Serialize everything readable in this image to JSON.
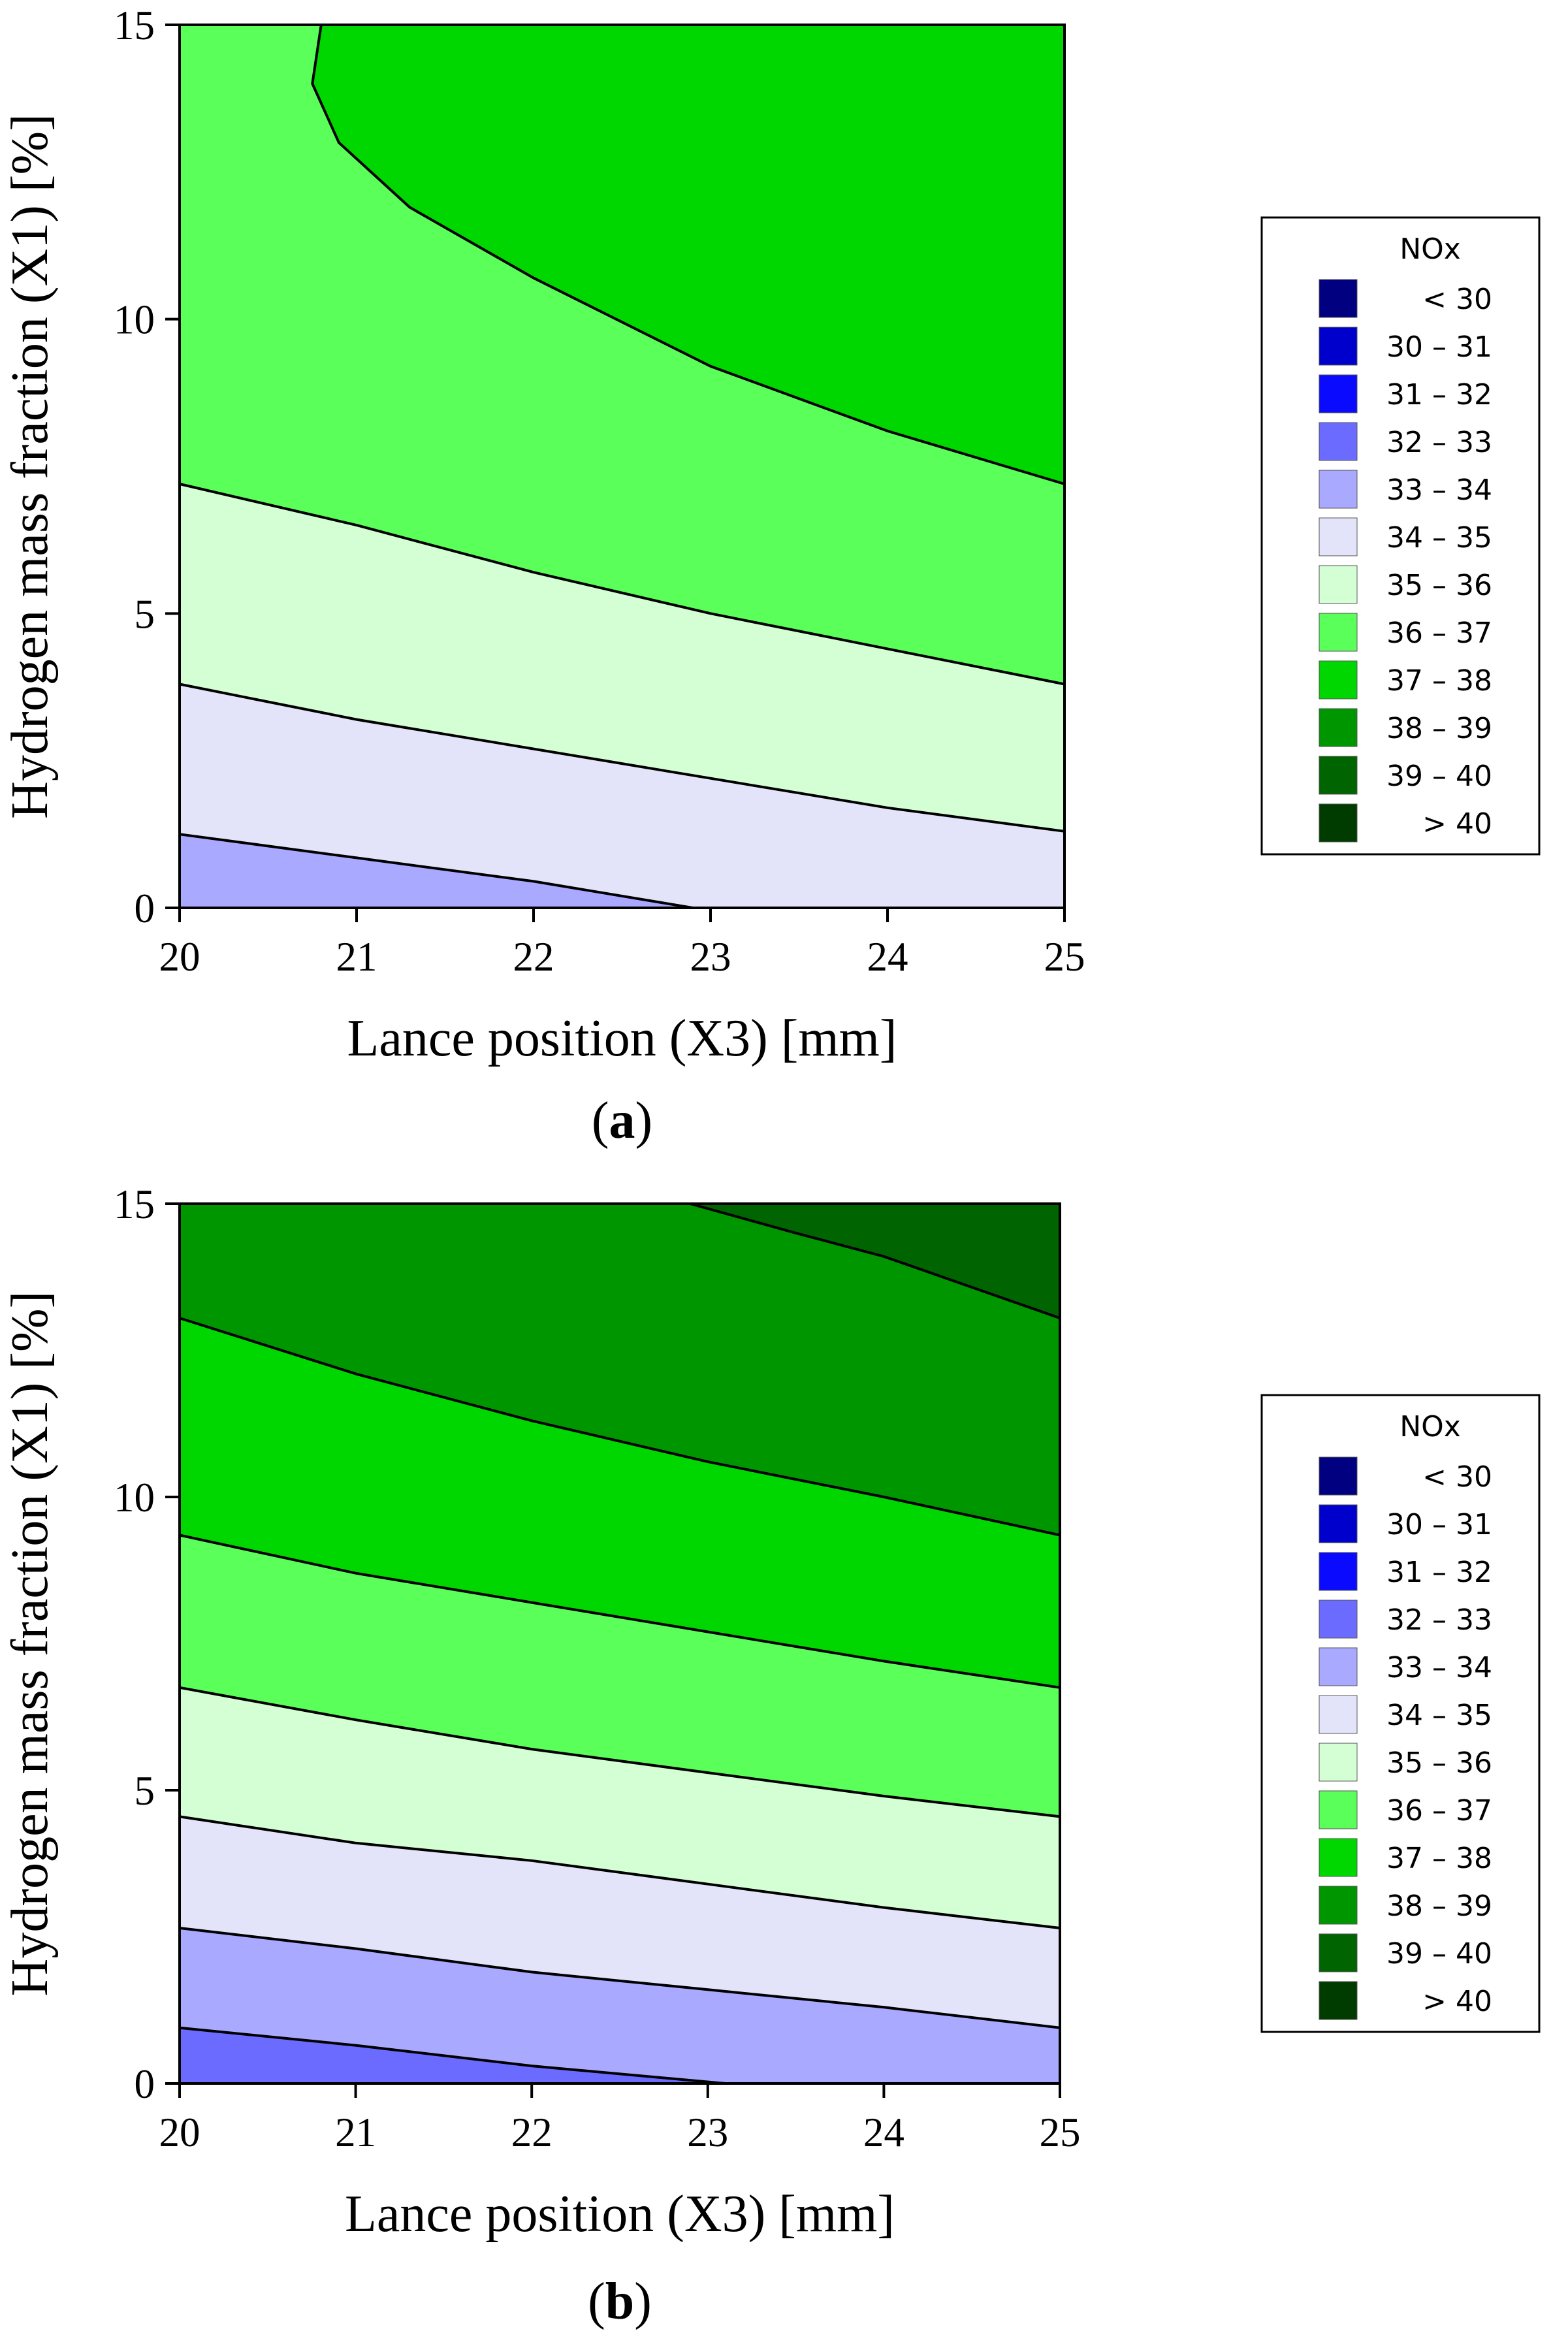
{
  "chart_data": [
    {
      "type": "contour",
      "panel_label": "a",
      "xlabel": "Lance position (X3) [mm]",
      "ylabel": "Hydrogen mass fraction (X1) [%]",
      "xlim": [
        20,
        25
      ],
      "ylim": [
        0,
        15
      ],
      "xticks": [
        "20",
        "21",
        "22",
        "23",
        "24",
        "25"
      ],
      "yticks": [
        "0",
        "5",
        "10",
        "15"
      ],
      "contours": [
        {
          "level": 34,
          "points": [
            [
              20,
              1.25
            ],
            [
              21,
              0.85
            ],
            [
              22,
              0.45
            ],
            [
              22.9,
              0.0
            ]
          ]
        },
        {
          "level": 35,
          "points": [
            [
              20,
              3.8
            ],
            [
              21,
              3.2
            ],
            [
              22,
              2.7
            ],
            [
              23,
              2.2
            ],
            [
              24,
              1.7
            ],
            [
              25,
              1.3
            ]
          ]
        },
        {
          "level": 36,
          "points": [
            [
              20,
              7.2
            ],
            [
              21,
              6.5
            ],
            [
              22,
              5.7
            ],
            [
              23,
              5.0
            ],
            [
              24,
              4.4
            ],
            [
              25,
              3.8
            ]
          ]
        },
        {
          "level": 37,
          "points": [
            [
              20.8,
              15.0
            ],
            [
              20.75,
              14.0
            ],
            [
              20.9,
              13.0
            ],
            [
              21.3,
              11.9
            ],
            [
              22,
              10.7
            ],
            [
              23,
              9.2
            ],
            [
              24,
              8.1
            ],
            [
              25,
              7.2
            ]
          ]
        }
      ],
      "regions": [
        {
          "range": "33 - 34",
          "location": "bottom-left corner"
        },
        {
          "range": "34 - 35",
          "location": "lower band"
        },
        {
          "range": "35 - 36",
          "location": "middle band"
        },
        {
          "range": "36 - 37",
          "location": "upper-left region"
        },
        {
          "range": "37 - 38",
          "location": "top-right region"
        }
      ],
      "legend": {
        "title": "NOx",
        "items": [
          {
            "label": "< 30",
            "color": "#000080"
          },
          {
            "label": "30 – 31",
            "color": "#0000cc"
          },
          {
            "label": "31 – 32",
            "color": "#0a0aff"
          },
          {
            "label": "32 – 33",
            "color": "#6b6bff"
          },
          {
            "label": "33 – 34",
            "color": "#a9a9ff"
          },
          {
            "label": "34 – 35",
            "color": "#e3e3fa"
          },
          {
            "label": "35 – 36",
            "color": "#d4ffd4"
          },
          {
            "label": "36 – 37",
            "color": "#5aff5a"
          },
          {
            "label": "37 – 38",
            "color": "#00d600"
          },
          {
            "label": "38 – 39",
            "color": "#009600"
          },
          {
            "label": "39 – 40",
            "color": "#006400"
          },
          {
            "label": "> 40",
            "color": "#003c00"
          }
        ]
      }
    },
    {
      "type": "contour",
      "panel_label": "b",
      "xlabel": "Lance position (X3) [mm]",
      "ylabel": "Hydrogen mass fraction (X1) [%]",
      "xlim": [
        20,
        25
      ],
      "ylim": [
        0,
        15
      ],
      "xticks": [
        "20",
        "21",
        "22",
        "23",
        "24",
        "25"
      ],
      "yticks": [
        "0",
        "5",
        "10",
        "15"
      ],
      "contours": [
        {
          "level": 33,
          "points": [
            [
              20,
              0.95
            ],
            [
              21,
              0.65
            ],
            [
              22,
              0.3
            ],
            [
              23.1,
              0.0
            ]
          ]
        },
        {
          "level": 34,
          "points": [
            [
              20,
              2.65
            ],
            [
              21,
              2.3
            ],
            [
              22,
              1.9
            ],
            [
              23,
              1.6
            ],
            [
              24,
              1.3
            ],
            [
              25,
              0.95
            ]
          ]
        },
        {
          "level": 35,
          "points": [
            [
              20,
              4.55
            ],
            [
              21,
              4.1
            ],
            [
              22,
              3.8
            ],
            [
              23,
              3.4
            ],
            [
              24,
              3.0
            ],
            [
              25,
              2.65
            ]
          ]
        },
        {
          "level": 36,
          "points": [
            [
              20,
              6.75
            ],
            [
              21,
              6.2
            ],
            [
              22,
              5.7
            ],
            [
              23,
              5.3
            ],
            [
              24,
              4.9
            ],
            [
              25,
              4.55
            ]
          ]
        },
        {
          "level": 37,
          "points": [
            [
              20,
              9.35
            ],
            [
              21,
              8.7
            ],
            [
              22,
              8.2
            ],
            [
              23,
              7.7
            ],
            [
              24,
              7.2
            ],
            [
              25,
              6.75
            ]
          ]
        },
        {
          "level": 38,
          "points": [
            [
              20,
              13.05
            ],
            [
              21,
              12.1
            ],
            [
              22,
              11.3
            ],
            [
              23,
              10.6
            ],
            [
              24,
              10.0
            ],
            [
              25,
              9.35
            ]
          ]
        },
        {
          "level": 39,
          "points": [
            [
              22.9,
              15.0
            ],
            [
              23.5,
              14.5
            ],
            [
              24,
              14.1
            ],
            [
              25,
              13.05
            ]
          ]
        }
      ],
      "regions": [
        {
          "range": "32 - 33",
          "location": "bottom-left corner"
        },
        {
          "range": "33 - 34",
          "location": "lowest band"
        },
        {
          "range": "34 - 35",
          "location": "lower band"
        },
        {
          "range": "35 - 36",
          "location": "middle band"
        },
        {
          "range": "36 - 37",
          "location": "middle band"
        },
        {
          "range": "37 - 38",
          "location": "upper band"
        },
        {
          "range": "38 - 39",
          "location": "top band"
        },
        {
          "range": "39 - 40",
          "location": "top-right corner"
        }
      ],
      "legend": {
        "title": "NOx",
        "items": [
          {
            "label": "< 30",
            "color": "#000080"
          },
          {
            "label": "30 – 31",
            "color": "#0000cc"
          },
          {
            "label": "31 – 32",
            "color": "#0a0aff"
          },
          {
            "label": "32 – 33",
            "color": "#6b6bff"
          },
          {
            "label": "33 – 34",
            "color": "#a9a9ff"
          },
          {
            "label": "34 – 35",
            "color": "#e3e3fa"
          },
          {
            "label": "35 – 36",
            "color": "#d4ffd4"
          },
          {
            "label": "36 – 37",
            "color": "#5aff5a"
          },
          {
            "label": "37 – 38",
            "color": "#00d600"
          },
          {
            "label": "38 – 39",
            "color": "#009600"
          },
          {
            "label": "39 – 40",
            "color": "#006400"
          },
          {
            "label": "> 40",
            "color": "#003c00"
          }
        ]
      }
    }
  ]
}
